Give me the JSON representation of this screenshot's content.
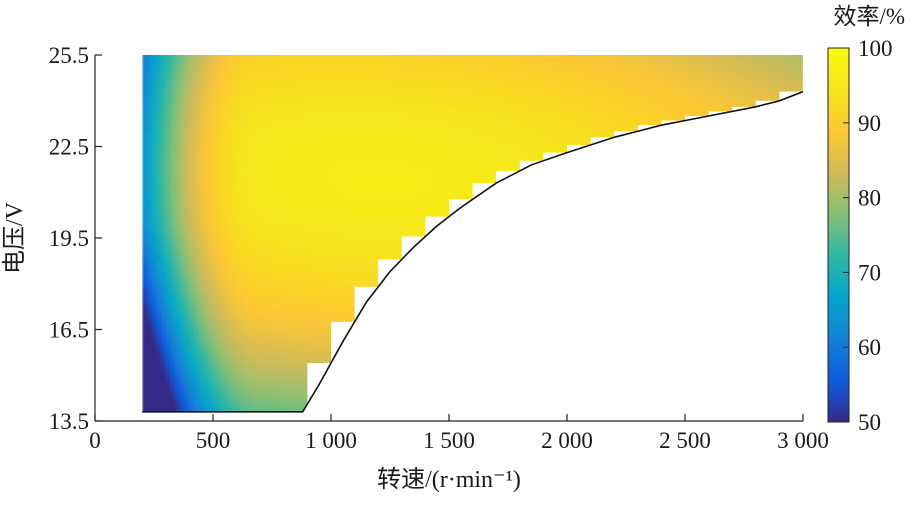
{
  "chart_data": {
    "type": "heatmap",
    "title": "",
    "xlabel": "转速/(r·min⁻¹)",
    "ylabel": "电压/V",
    "xlim": [
      0,
      3000
    ],
    "ylim": [
      13.5,
      25.5
    ],
    "x_ticks": [
      0,
      500,
      1000,
      1500,
      2000,
      2500,
      3000
    ],
    "x_tick_labels": [
      "0",
      "500",
      "1 000",
      "1 500",
      "2 000",
      "2 500",
      "3 000"
    ],
    "y_ticks": [
      13.5,
      16.5,
      19.5,
      22.5,
      25.5
    ],
    "y_tick_labels": [
      "13.5",
      "16.5",
      "19.5",
      "22.5",
      "25.5"
    ],
    "grid": false,
    "colorbar": {
      "title": "效率/%",
      "range": [
        50,
        100
      ],
      "ticks": [
        50,
        60,
        70,
        80,
        90,
        100
      ],
      "tick_labels": [
        "50",
        "60",
        "70",
        "80",
        "90",
        "100"
      ],
      "colormap": "parula",
      "stops": [
        "#352a87",
        "#0f5cdd",
        "#1481d6",
        "#06a4ca",
        "#2eb7a4",
        "#87bf77",
        "#d1bb59",
        "#fec832",
        "#f5e61c",
        "#f9fb0e"
      ]
    },
    "data_region": {
      "speed_range": [
        200,
        3000
      ],
      "voltage_range": [
        13.8,
        25.5
      ],
      "peak_efficiency_point": [
        1200,
        21.5
      ],
      "peak_efficiency": 96,
      "min_efficiency_point": [
        200,
        13.8
      ],
      "min_efficiency": 52
    },
    "boundary_curve": {
      "x": [
        200,
        880,
        950,
        1050,
        1150,
        1250,
        1350,
        1450,
        1550,
        1700,
        1850,
        2000,
        2200,
        2400,
        2600,
        2800,
        2900,
        3000
      ],
      "y": [
        13.8,
        13.8,
        14.7,
        16.1,
        17.4,
        18.4,
        19.2,
        19.9,
        20.5,
        21.3,
        21.9,
        22.3,
        22.8,
        23.2,
        23.5,
        23.8,
        24.0,
        24.3
      ]
    }
  }
}
